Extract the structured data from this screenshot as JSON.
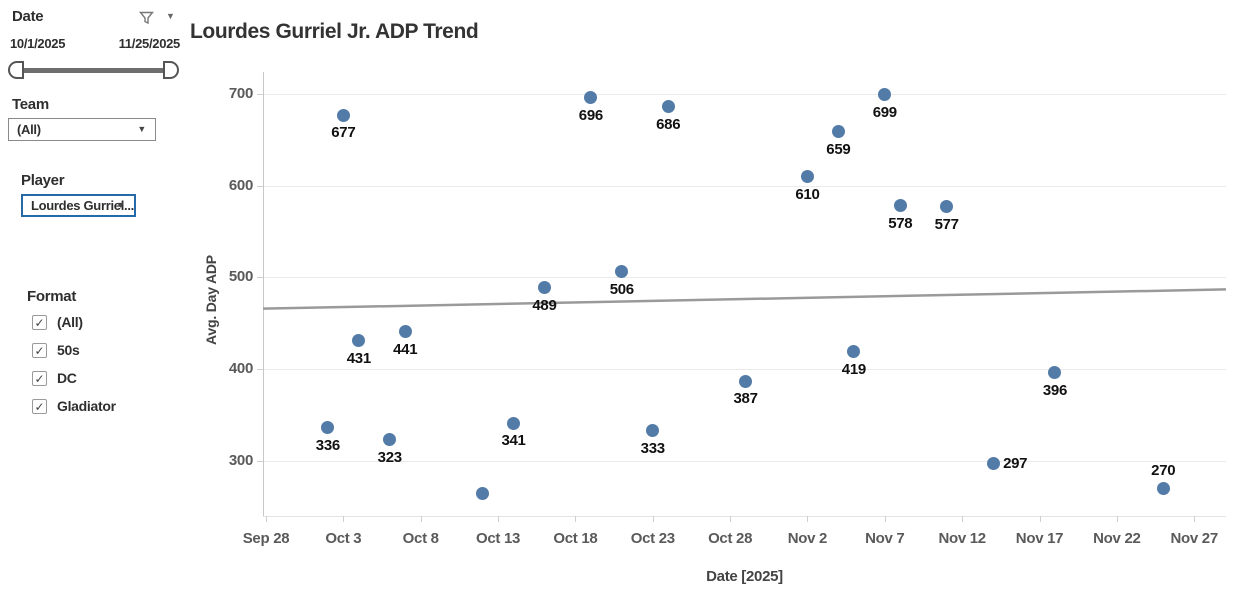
{
  "sidebar": {
    "date_filter": {
      "label": "Date",
      "start": "10/1/2025",
      "end": "11/25/2025"
    },
    "team_filter": {
      "label": "Team",
      "value": "(All)"
    },
    "player_filter": {
      "label": "Player",
      "value": "Lourdes Gurriel..."
    },
    "format_filter": {
      "label": "Format",
      "options": [
        {
          "label": "(All)",
          "checked": true
        },
        {
          "label": "50s",
          "checked": true
        },
        {
          "label": "DC",
          "checked": true
        },
        {
          "label": "Gladiator",
          "checked": true
        }
      ]
    }
  },
  "chart_data": {
    "type": "scatter",
    "title": "Lourdes Gurriel Jr. ADP Trend",
    "xlabel": "Date [2025]",
    "ylabel": "Avg. Day ADP",
    "x_ticks": [
      "Sep 28",
      "Oct 3",
      "Oct 8",
      "Oct 13",
      "Oct 18",
      "Oct 23",
      "Oct 28",
      "Nov 2",
      "Nov 7",
      "Nov 12",
      "Nov 17",
      "Nov 22",
      "Nov 27"
    ],
    "y_ticks": [
      700,
      600,
      500,
      400,
      300
    ],
    "ylim": [
      240,
      724
    ],
    "grid": "horizontal",
    "legend": "none",
    "point_color": "#527ba8",
    "label_color": "#111111",
    "trend_line": {
      "left_value": 466,
      "right_value": 487,
      "color": "#9a9a9a"
    },
    "points": [
      {
        "date": "Oct 2",
        "value": 336,
        "label": "336",
        "label_pos": "below"
      },
      {
        "date": "Oct 3",
        "value": 677,
        "label": "677",
        "label_pos": "below"
      },
      {
        "date": "Oct 4",
        "value": 431,
        "label": "431",
        "label_pos": "below"
      },
      {
        "date": "Oct 6",
        "value": 323,
        "label": "323",
        "label_pos": "below"
      },
      {
        "date": "Oct 7",
        "value": 441,
        "label": "441",
        "label_pos": "below"
      },
      {
        "date": "Oct 12",
        "value": 265,
        "label": "",
        "label_pos": "none"
      },
      {
        "date": "Oct 14",
        "value": 341,
        "label": "341",
        "label_pos": "below"
      },
      {
        "date": "Oct 16",
        "value": 489,
        "label": "489",
        "label_pos": "below"
      },
      {
        "date": "Oct 19",
        "value": 696,
        "label": "696",
        "label_pos": "below"
      },
      {
        "date": "Oct 21",
        "value": 506,
        "label": "506",
        "label_pos": "below"
      },
      {
        "date": "Oct 23",
        "value": 333,
        "label": "333",
        "label_pos": "below"
      },
      {
        "date": "Oct 24",
        "value": 686,
        "label": "686",
        "label_pos": "below"
      },
      {
        "date": "Oct 29",
        "value": 387,
        "label": "387",
        "label_pos": "below"
      },
      {
        "date": "Nov 2",
        "value": 610,
        "label": "610",
        "label_pos": "below"
      },
      {
        "date": "Nov 4",
        "value": 659,
        "label": "659",
        "label_pos": "below"
      },
      {
        "date": "Nov 5",
        "value": 419,
        "label": "419",
        "label_pos": "below"
      },
      {
        "date": "Nov 7",
        "value": 699,
        "label": "699",
        "label_pos": "below"
      },
      {
        "date": "Nov 8",
        "value": 578,
        "label": "578",
        "label_pos": "below"
      },
      {
        "date": "Nov 11",
        "value": 577,
        "label": "577",
        "label_pos": "below"
      },
      {
        "date": "Nov 14",
        "value": 297,
        "label": "297",
        "label_pos": "right"
      },
      {
        "date": "Nov 18",
        "value": 396,
        "label": "396",
        "label_pos": "below"
      },
      {
        "date": "Nov 25",
        "value": 270,
        "label": "270",
        "label_pos": "above"
      }
    ]
  }
}
